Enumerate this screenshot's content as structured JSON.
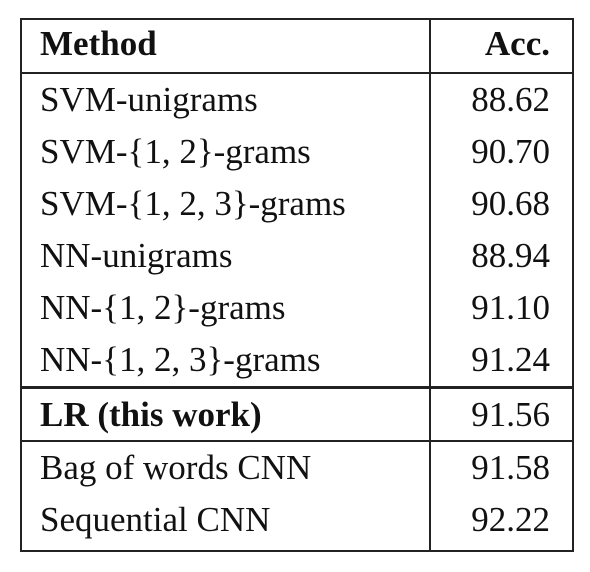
{
  "table": {
    "header": [
      "Method",
      "Acc."
    ],
    "rows": [
      [
        "SVM-unigrams",
        "88.62"
      ],
      [
        "SVM-{1, 2}-grams",
        "90.70"
      ],
      [
        "SVM-{1, 2, 3}-grams",
        "90.68"
      ],
      [
        "NN-unigrams",
        "88.94"
      ],
      [
        "NN-{1, 2}-grams",
        "91.10"
      ],
      [
        "NN-{1, 2, 3}-grams",
        "91.24"
      ],
      [
        "LR (this work)",
        "91.56"
      ],
      [
        "Bag of words CNN",
        "91.58"
      ],
      [
        "Sequential CNN",
        "92.22"
      ]
    ]
  }
}
